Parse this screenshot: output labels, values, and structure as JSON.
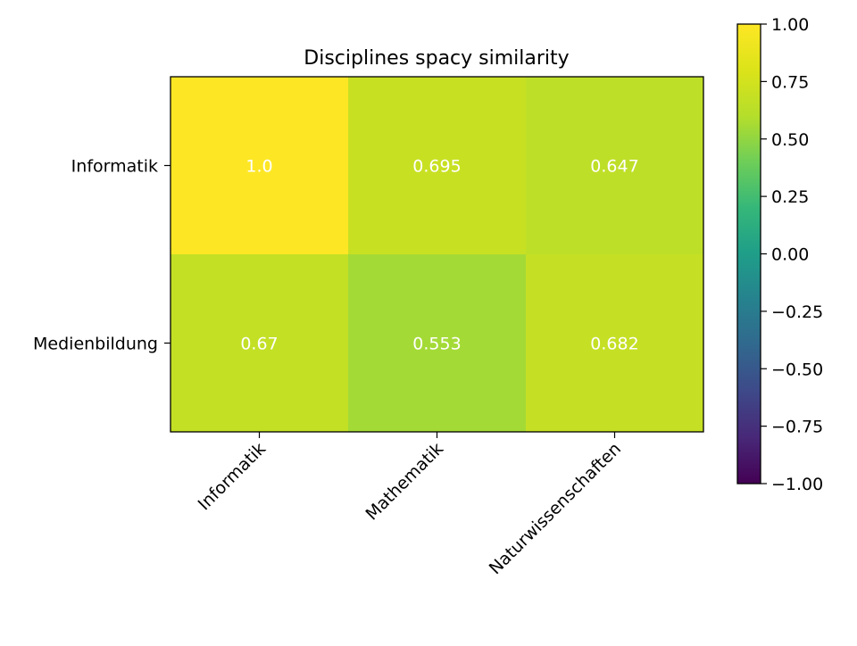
{
  "chart_data": {
    "type": "heatmap",
    "title": "Disciplines spacy similarity",
    "xlabel": "",
    "ylabel": "",
    "x_categories": [
      "Informatik",
      "Mathematik",
      "Naturwissenschaften"
    ],
    "y_categories": [
      "Informatik",
      "Medienbildung"
    ],
    "values": [
      [
        1.0,
        0.695,
        0.647
      ],
      [
        0.67,
        0.553,
        0.682
      ]
    ],
    "cell_labels": [
      [
        "1.0",
        "0.695",
        "0.647"
      ],
      [
        "0.67",
        "0.553",
        "0.682"
      ]
    ],
    "colormap": "viridis",
    "vmin": -1.0,
    "vmax": 1.0,
    "colorbar": {
      "ticks": [
        1.0,
        0.75,
        0.5,
        0.25,
        0.0,
        -0.25,
        -0.5,
        -0.75,
        -1.0
      ],
      "tick_labels": [
        "1.00",
        "0.75",
        "0.50",
        "0.25",
        "0.00",
        "−0.25",
        "−0.50",
        "−0.75",
        "−1.00"
      ]
    },
    "annotation_color": "#ffffff",
    "grid": false,
    "legend": "none"
  }
}
